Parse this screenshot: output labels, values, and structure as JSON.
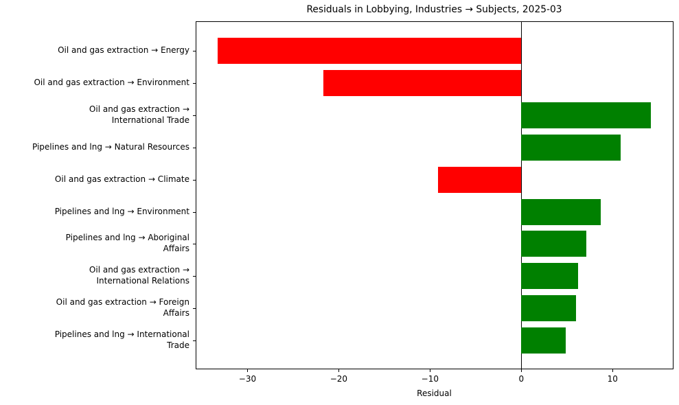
{
  "chart_data": {
    "type": "bar",
    "orientation": "horizontal",
    "title": "Residuals in Lobbying, Industries → Subjects, 2025-03",
    "xlabel": "Residual",
    "ylabel": "",
    "xlim": [
      -35.6,
      16.6
    ],
    "xticks": [
      -30,
      -20,
      -10,
      0,
      10
    ],
    "xtick_labels": [
      "−30",
      "−20",
      "−10",
      "0",
      "10"
    ],
    "grid": false,
    "legend": null,
    "categories": [
      "Oil and gas extraction → Energy",
      "Oil and gas extraction → Environment",
      "Oil and gas extraction →\nInternational Trade",
      "Pipelines and lng → Natural Resources",
      "Oil and gas extraction → Climate",
      "Pipelines and lng → Environment",
      "Pipelines and lng → Aboriginal\nAffairs",
      "Oil and gas extraction →\nInternational Relations",
      "Oil and gas extraction → Foreign\nAffairs",
      "Pipelines and lng → International\nTrade"
    ],
    "values": [
      -33.3,
      -21.7,
      14.2,
      10.9,
      -9.1,
      8.7,
      7.1,
      6.2,
      6.0,
      4.9
    ],
    "colors": {
      "positive": "#008000",
      "negative": "#ff0000"
    },
    "reference_line": {
      "x": 0,
      "color": "#000000"
    }
  }
}
